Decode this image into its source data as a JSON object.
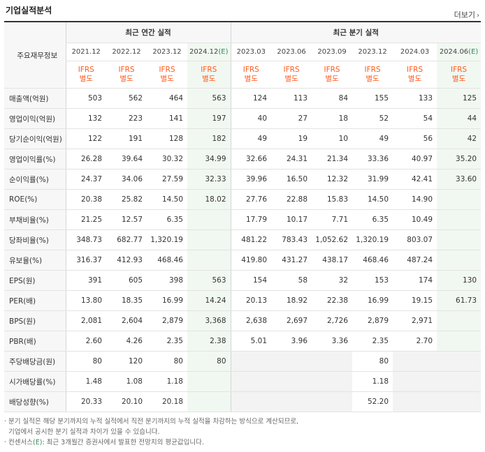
{
  "title": "기업실적분석",
  "more": {
    "label": "더보기",
    "icon": "chevron-right-icon"
  },
  "table": {
    "corner_label": "주요재무정보",
    "group_annual": "최근 연간 실적",
    "group_quarter": "최근 분기 실적",
    "periods": [
      {
        "label": "2021.12",
        "est": ""
      },
      {
        "label": "2022.12",
        "est": ""
      },
      {
        "label": "2023.12",
        "est": ""
      },
      {
        "label": "2024.12",
        "est": "(E)"
      },
      {
        "label": "2023.03",
        "est": ""
      },
      {
        "label": "2023.06",
        "est": ""
      },
      {
        "label": "2023.09",
        "est": ""
      },
      {
        "label": "2023.12",
        "est": ""
      },
      {
        "label": "2024.03",
        "est": ""
      },
      {
        "label": "2024.06",
        "est": "(E)"
      }
    ],
    "ifrs_line1": "IFRS",
    "ifrs_line2": "별도",
    "rows": [
      {
        "label": "매출액(억원)",
        "values": [
          "503",
          "562",
          "464",
          "563",
          "124",
          "113",
          "84",
          "155",
          "133",
          "125"
        ]
      },
      {
        "label": "영업이익(억원)",
        "values": [
          "132",
          "223",
          "141",
          "197",
          "40",
          "27",
          "18",
          "52",
          "54",
          "44"
        ]
      },
      {
        "label": "당기순이익(억원)",
        "values": [
          "122",
          "191",
          "128",
          "182",
          "49",
          "19",
          "10",
          "49",
          "56",
          "42"
        ]
      },
      {
        "label": "영업이익률(%)",
        "values": [
          "26.28",
          "39.64",
          "30.32",
          "34.99",
          "32.66",
          "24.31",
          "21.34",
          "33.36",
          "40.97",
          "35.20"
        ]
      },
      {
        "label": "순이익률(%)",
        "values": [
          "24.37",
          "34.06",
          "27.59",
          "32.33",
          "39.96",
          "16.50",
          "12.32",
          "31.99",
          "42.41",
          "33.60"
        ]
      },
      {
        "label": "ROE(%)",
        "values": [
          "20.38",
          "25.82",
          "14.50",
          "18.02",
          "27.76",
          "22.88",
          "15.83",
          "14.50",
          "14.90",
          ""
        ]
      },
      {
        "label": "부채비율(%)",
        "values": [
          "21.25",
          "12.57",
          "6.35",
          "",
          "17.79",
          "10.17",
          "7.71",
          "6.35",
          "10.49",
          ""
        ]
      },
      {
        "label": "당좌비율(%)",
        "values": [
          "348.73",
          "682.77",
          "1,320.19",
          "",
          "481.22",
          "783.43",
          "1,052.62",
          "1,320.19",
          "803.07",
          ""
        ]
      },
      {
        "label": "유보율(%)",
        "values": [
          "316.37",
          "412.93",
          "468.46",
          "",
          "419.80",
          "431.27",
          "438.17",
          "468.46",
          "487.24",
          ""
        ]
      },
      {
        "label": "EPS(원)",
        "values": [
          "391",
          "605",
          "398",
          "563",
          "154",
          "58",
          "32",
          "153",
          "174",
          "130"
        ]
      },
      {
        "label": "PER(배)",
        "values": [
          "13.80",
          "18.35",
          "16.99",
          "14.24",
          "20.13",
          "18.92",
          "22.38",
          "16.99",
          "19.15",
          "61.73"
        ]
      },
      {
        "label": "BPS(원)",
        "values": [
          "2,081",
          "2,604",
          "2,879",
          "3,368",
          "2,638",
          "2,697",
          "2,726",
          "2,879",
          "2,971",
          ""
        ]
      },
      {
        "label": "PBR(배)",
        "values": [
          "2.60",
          "4.26",
          "2.35",
          "2.38",
          "5.01",
          "3.96",
          "3.36",
          "2.35",
          "2.70",
          ""
        ]
      },
      {
        "label": "주당배당금(원)",
        "values": [
          "80",
          "120",
          "80",
          "80",
          "",
          "",
          "",
          "80",
          "",
          ""
        ]
      },
      {
        "label": "시가배당률(%)",
        "values": [
          "1.48",
          "1.08",
          "1.18",
          "",
          "",
          "",
          "",
          "1.18",
          "",
          ""
        ]
      },
      {
        "label": "배당성향(%)",
        "values": [
          "20.33",
          "20.10",
          "20.18",
          "",
          "",
          "",
          "",
          "52.20",
          "",
          ""
        ]
      }
    ]
  },
  "notes": {
    "line1": "분기 실적은 해당 분기까지의 누적 실적에서 직전 분기까지의 누적 실적을 차감하는 방식으로 계산되므로,",
    "line2": "기업에서 공시한 분기 실적과 차이가 있을 수 있습니다.",
    "line3_prefix": "컨센서스",
    "line3_est": "(E)",
    "line3_suffix": ": 최근 3개월간 증권사에서 발표한 전망치의 평균값입니다."
  }
}
